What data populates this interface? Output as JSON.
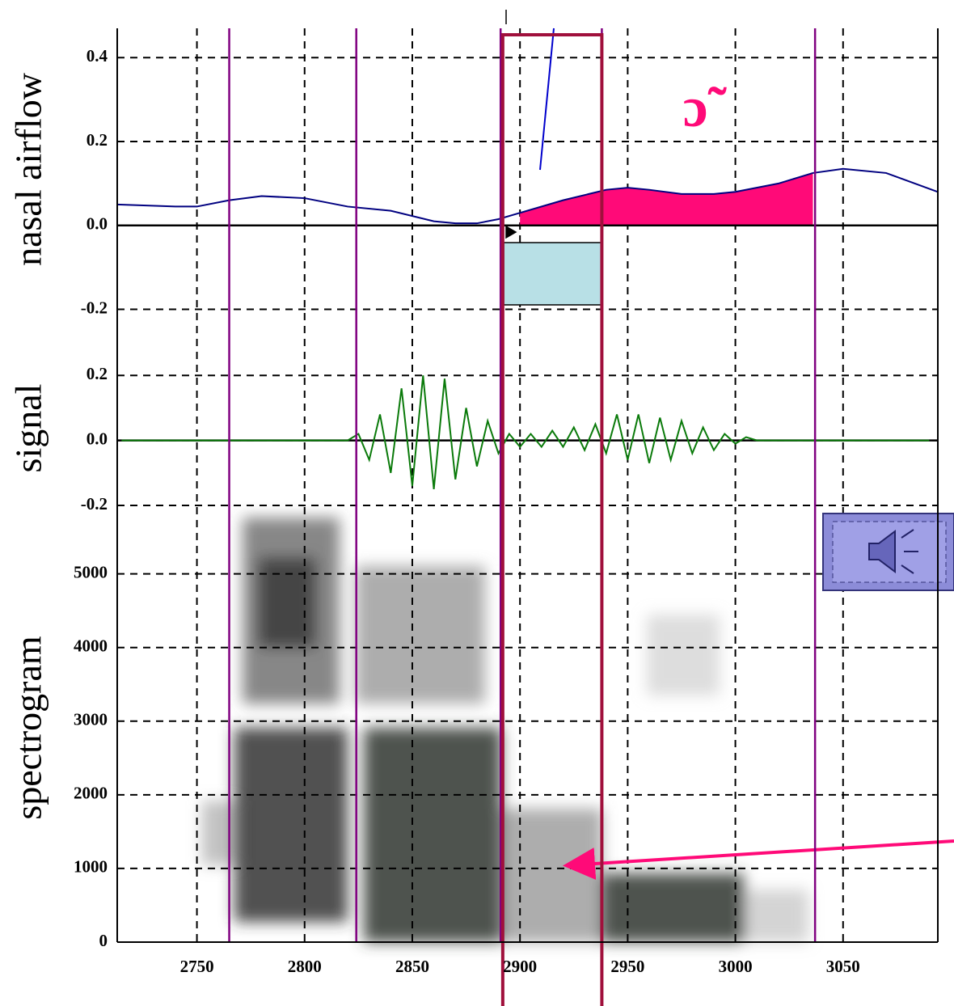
{
  "chart_data": [
    {
      "type": "line",
      "ylabel": "nasal airflow",
      "color": "#000080",
      "x": [
        2713,
        2740,
        2750,
        2765,
        2780,
        2800,
        2820,
        2840,
        2860,
        2870,
        2880,
        2890,
        2900,
        2920,
        2940,
        2950,
        2960,
        2975,
        2990,
        3000,
        3020,
        3036,
        3050,
        3070,
        3094
      ],
      "values": [
        0.05,
        0.045,
        0.045,
        0.06,
        0.07,
        0.065,
        0.045,
        0.035,
        0.01,
        0.005,
        0.005,
        0.015,
        0.03,
        0.06,
        0.085,
        0.09,
        0.085,
        0.075,
        0.075,
        0.08,
        0.1,
        0.125,
        0.135,
        0.125,
        0.08
      ],
      "fill_range": [
        2891,
        3037
      ],
      "fill_color": "#ff0a78",
      "annotation": "ɔ̃",
      "annotation_color": "#ff0a78",
      "boundaries": [
        2765,
        2824,
        2891,
        2938,
        3037
      ],
      "boundary_color": "#800080",
      "highlight": [
        2892,
        2938
      ],
      "highlight_color": "#a0103c",
      "xlim": [
        2713,
        3094
      ],
      "ylim": [
        -0.28,
        0.47
      ],
      "yticks": [
        0.4,
        0.2,
        {
          "value": 0,
          "label": "0.0"
        },
        -0.2
      ],
      "grid": true
    },
    {
      "type": "line",
      "ylabel": "signal",
      "color": "#0a7a0a",
      "x": [
        2715,
        2720,
        2725,
        2730,
        2735,
        2740,
        2745,
        2750,
        2755,
        2760,
        2765,
        2770,
        2775,
        2780,
        2785,
        2790,
        2795,
        2800,
        2805,
        2810,
        2815,
        2820,
        2825,
        2830,
        2835,
        2840,
        2845,
        2850,
        2855,
        2860,
        2865,
        2870,
        2875,
        2880,
        2885,
        2890,
        2895,
        2900,
        2905,
        2910,
        2915,
        2920,
        2925,
        2930,
        2935,
        2940,
        2945,
        2950,
        2955,
        2960,
        2965,
        2970,
        2975,
        2980,
        2985,
        2990,
        2995,
        3000,
        3005,
        3010,
        3015,
        3020,
        3025,
        3030,
        3035,
        3040,
        3045,
        3050,
        3055,
        3060,
        3065,
        3070,
        3075,
        3080,
        3085,
        3090
      ],
      "values": [
        0,
        0,
        0,
        0,
        0,
        0,
        0,
        0,
        0,
        0,
        0,
        0,
        0,
        0,
        0,
        0,
        0,
        0,
        0,
        0,
        0,
        0,
        0.02,
        -0.06,
        0.08,
        -0.1,
        0.16,
        -0.14,
        0.2,
        -0.15,
        0.19,
        -0.12,
        0.1,
        -0.08,
        0.06,
        -0.04,
        0.02,
        -0.02,
        0.02,
        -0.02,
        0.03,
        -0.02,
        0.04,
        -0.03,
        0.05,
        -0.04,
        0.08,
        -0.06,
        0.08,
        -0.07,
        0.07,
        -0.06,
        0.06,
        -0.04,
        0.04,
        -0.03,
        0.02,
        -0.01,
        0.01,
        0,
        0,
        0,
        0,
        0,
        0,
        0,
        0,
        0,
        0,
        0,
        0,
        0,
        0,
        0,
        0,
        0
      ],
      "xlim": [
        2713,
        3094
      ],
      "ylim": [
        -0.225,
        0.3
      ],
      "yticks": [
        0.2,
        {
          "value": 0,
          "label": "0.0"
        },
        -0.2
      ],
      "grid": true
    },
    {
      "type": "spectrogram",
      "ylabel": "spectrogram",
      "xlim": [
        2713,
        3094
      ],
      "ylim": [
        0,
        5820
      ],
      "xticks": [
        2750,
        2800,
        2850,
        2900,
        2950,
        3000,
        3050
      ],
      "yticks": [
        0,
        1000,
        2000,
        3000,
        4000,
        5000
      ],
      "grid": true
    }
  ]
}
